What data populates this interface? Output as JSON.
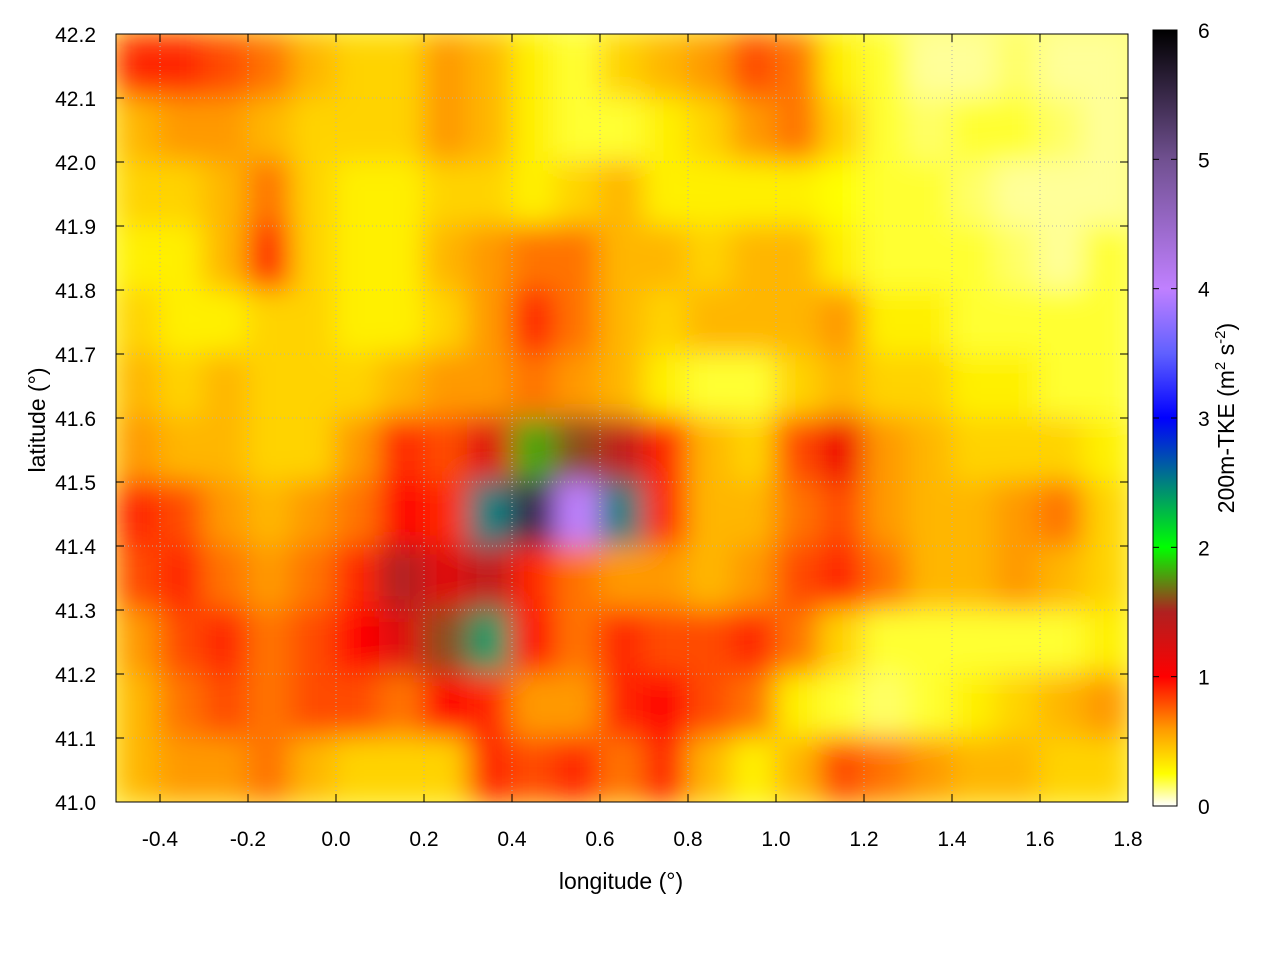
{
  "chart_data": {
    "type": "heatmap",
    "xlabel": "longitude (°)",
    "ylabel": "latitude (°)",
    "colorbar_label": "200m-TKE (m² s⁻²)",
    "colorbar_label_parts": {
      "main": "200m-TKE (m",
      "sup1": "2",
      "mid": " s",
      "sup2": "-2",
      "end": ")"
    },
    "xlim": [
      -0.5,
      1.8
    ],
    "ylim": [
      41.0,
      42.2
    ],
    "clim": [
      0,
      6
    ],
    "grid": true,
    "xticks": [
      "-0.4",
      "-0.2",
      "0.0",
      "0.2",
      "0.4",
      "0.6",
      "0.8",
      "1.0",
      "1.2",
      "1.4",
      "1.6",
      "1.8"
    ],
    "yticks": [
      "41.0",
      "41.1",
      "41.2",
      "41.3",
      "41.4",
      "41.5",
      "41.6",
      "41.7",
      "41.8",
      "41.9",
      "42.0",
      "42.1",
      "42.2"
    ],
    "cticks": [
      "0",
      "1",
      "2",
      "3",
      "4",
      "5",
      "6"
    ],
    "colormap": [
      {
        "v": 0,
        "c": "#ffffff"
      },
      {
        "v": 0.25,
        "c": "#ffff00"
      },
      {
        "v": 0.6,
        "c": "#ff9900"
      },
      {
        "v": 1,
        "c": "#ff0000"
      },
      {
        "v": 1.5,
        "c": "#b02020"
      },
      {
        "v": 2,
        "c": "#00ff00"
      },
      {
        "v": 2.5,
        "c": "#008080"
      },
      {
        "v": 3,
        "c": "#0000ff"
      },
      {
        "v": 3.5,
        "c": "#6060ff"
      },
      {
        "v": 4,
        "c": "#c080ff"
      },
      {
        "v": 5,
        "c": "#705090"
      },
      {
        "v": 6,
        "c": "#000000"
      }
    ],
    "x": [
      -0.45,
      -0.35,
      -0.25,
      -0.15,
      -0.05,
      0.05,
      0.15,
      0.25,
      0.35,
      0.45,
      0.55,
      0.65,
      0.75,
      0.85,
      0.95,
      1.05,
      1.15,
      1.25,
      1.35,
      1.45,
      1.55,
      1.65,
      1.75
    ],
    "y": [
      42.15,
      42.05,
      41.95,
      41.85,
      41.75,
      41.65,
      41.55,
      41.45,
      41.35,
      41.25,
      41.15,
      41.05
    ],
    "values": [
      [
        0.9,
        0.9,
        0.8,
        0.7,
        0.5,
        0.4,
        0.4,
        0.6,
        0.5,
        0.3,
        0.2,
        0.4,
        0.5,
        0.6,
        0.8,
        0.7,
        0.3,
        0.2,
        0.1,
        0.1,
        0.15,
        0.1,
        0.1
      ],
      [
        0.5,
        0.6,
        0.6,
        0.5,
        0.4,
        0.4,
        0.4,
        0.6,
        0.5,
        0.3,
        0.2,
        0.2,
        0.3,
        0.4,
        0.6,
        0.7,
        0.4,
        0.2,
        0.15,
        0.2,
        0.2,
        0.15,
        0.1
      ],
      [
        0.4,
        0.4,
        0.5,
        0.7,
        0.4,
        0.3,
        0.3,
        0.4,
        0.4,
        0.3,
        0.4,
        0.5,
        0.3,
        0.3,
        0.3,
        0.3,
        0.25,
        0.2,
        0.2,
        0.15,
        0.1,
        0.1,
        0.1
      ],
      [
        0.3,
        0.3,
        0.5,
        0.9,
        0.4,
        0.3,
        0.3,
        0.5,
        0.6,
        0.7,
        0.7,
        0.5,
        0.5,
        0.4,
        0.5,
        0.5,
        0.3,
        0.2,
        0.2,
        0.2,
        0.15,
        0.1,
        0.2
      ],
      [
        0.4,
        0.3,
        0.3,
        0.4,
        0.4,
        0.3,
        0.3,
        0.4,
        0.6,
        0.9,
        0.7,
        0.5,
        0.4,
        0.5,
        0.5,
        0.5,
        0.6,
        0.3,
        0.3,
        0.2,
        0.2,
        0.2,
        0.2
      ],
      [
        0.5,
        0.4,
        0.5,
        0.4,
        0.4,
        0.4,
        0.5,
        0.6,
        0.6,
        0.7,
        0.6,
        0.5,
        0.3,
        0.2,
        0.2,
        0.4,
        0.5,
        0.4,
        0.4,
        0.3,
        0.3,
        0.2,
        0.2
      ],
      [
        0.6,
        0.5,
        0.5,
        0.4,
        0.4,
        0.6,
        0.9,
        0.8,
        1.2,
        1.8,
        1.6,
        1.4,
        0.9,
        0.5,
        0.4,
        0.8,
        1.1,
        0.6,
        0.5,
        0.4,
        0.4,
        0.4,
        0.3
      ],
      [
        0.9,
        0.8,
        0.6,
        0.5,
        0.6,
        0.7,
        1.0,
        0.9,
        2.5,
        5.5,
        4.0,
        2.5,
        0.9,
        0.5,
        0.5,
        0.7,
        0.8,
        0.6,
        0.5,
        0.5,
        0.6,
        0.7,
        0.4
      ],
      [
        0.8,
        0.9,
        0.7,
        0.6,
        0.7,
        0.9,
        1.5,
        1.2,
        1.4,
        0.9,
        0.7,
        0.6,
        0.6,
        0.5,
        0.6,
        0.8,
        0.9,
        0.7,
        0.5,
        0.5,
        0.6,
        0.5,
        0.4
      ],
      [
        0.6,
        0.8,
        0.9,
        0.7,
        0.8,
        1.0,
        1.2,
        1.6,
        2.4,
        1.0,
        0.7,
        0.9,
        0.8,
        0.8,
        0.9,
        0.7,
        0.4,
        0.2,
        0.2,
        0.2,
        0.2,
        0.2,
        0.3
      ],
      [
        0.5,
        0.7,
        0.8,
        0.7,
        0.8,
        0.8,
        0.7,
        1.0,
        0.9,
        0.6,
        0.6,
        0.9,
        1.0,
        0.8,
        0.7,
        0.3,
        0.2,
        0.15,
        0.2,
        0.3,
        0.4,
        0.5,
        0.6
      ],
      [
        0.5,
        0.6,
        0.6,
        0.7,
        0.5,
        0.4,
        0.4,
        0.4,
        0.9,
        0.8,
        0.9,
        0.7,
        0.9,
        0.5,
        0.3,
        0.5,
        0.8,
        0.7,
        0.6,
        0.5,
        0.5,
        0.4,
        0.4
      ]
    ]
  }
}
